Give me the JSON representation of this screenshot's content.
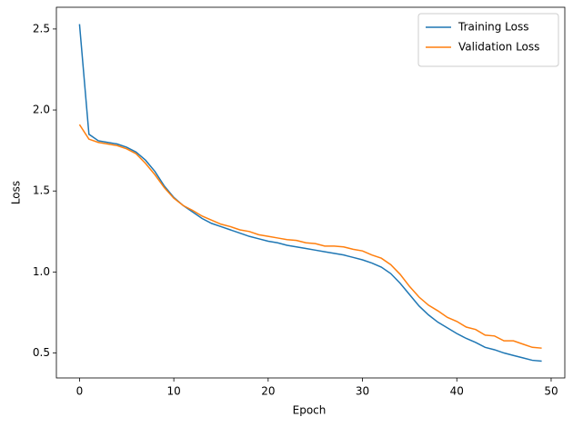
{
  "chart_data": {
    "type": "line",
    "xlabel": "Epoch",
    "ylabel": "Loss",
    "x": [
      0,
      1,
      2,
      3,
      4,
      5,
      6,
      7,
      8,
      9,
      10,
      11,
      12,
      13,
      14,
      15,
      16,
      17,
      18,
      19,
      20,
      21,
      22,
      23,
      24,
      25,
      26,
      27,
      28,
      29,
      30,
      31,
      32,
      33,
      34,
      35,
      36,
      37,
      38,
      39,
      40,
      41,
      42,
      43,
      44,
      45,
      46,
      47,
      48,
      49
    ],
    "series": [
      {
        "name": "Training Loss",
        "color": "#1f77b4",
        "values": [
          2.53,
          1.85,
          1.81,
          1.8,
          1.79,
          1.77,
          1.74,
          1.69,
          1.62,
          1.53,
          1.46,
          1.41,
          1.37,
          1.33,
          1.3,
          1.28,
          1.26,
          1.24,
          1.22,
          1.205,
          1.19,
          1.18,
          1.165,
          1.155,
          1.145,
          1.135,
          1.125,
          1.115,
          1.105,
          1.09,
          1.075,
          1.055,
          1.03,
          0.99,
          0.93,
          0.86,
          0.79,
          0.735,
          0.69,
          0.655,
          0.62,
          0.59,
          0.565,
          0.535,
          0.52,
          0.5,
          0.485,
          0.47,
          0.455,
          0.45
        ]
      },
      {
        "name": "Validation Loss",
        "color": "#ff7f0e",
        "values": [
          1.91,
          1.82,
          1.8,
          1.79,
          1.78,
          1.76,
          1.73,
          1.67,
          1.6,
          1.52,
          1.455,
          1.41,
          1.38,
          1.345,
          1.32,
          1.295,
          1.28,
          1.26,
          1.25,
          1.23,
          1.22,
          1.21,
          1.2,
          1.195,
          1.18,
          1.175,
          1.16,
          1.16,
          1.155,
          1.14,
          1.13,
          1.105,
          1.085,
          1.045,
          0.985,
          0.91,
          0.845,
          0.795,
          0.76,
          0.72,
          0.695,
          0.66,
          0.645,
          0.61,
          0.605,
          0.575,
          0.575,
          0.555,
          0.535,
          0.53
        ]
      }
    ],
    "xlim": [
      -2.45,
      51.45
    ],
    "xticks": [
      0,
      10,
      20,
      30,
      40,
      50
    ],
    "ylim": [
      0.346,
      2.634
    ],
    "yticks": [
      0.5,
      {
        "value": 1,
        "label": "1.0"
      },
      1.5,
      {
        "value": 2,
        "label": "2.0"
      },
      2.5
    ],
    "legend": "upper right"
  }
}
